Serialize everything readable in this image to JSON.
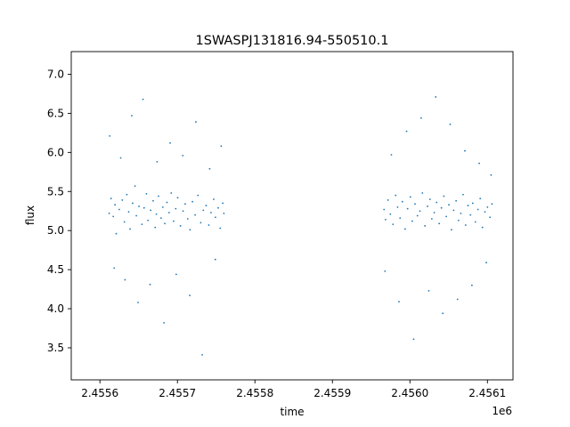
{
  "chart_data": {
    "type": "scatter",
    "title": "1SWASPJ131816.94-550510.1",
    "xlabel": "time",
    "ylabel": "flux",
    "x_offset_label": "1e6",
    "xlim": [
      2455563,
      2456133
    ],
    "ylim": [
      3.09,
      7.29
    ],
    "x_ticks": [
      2455600,
      2455700,
      2455800,
      2455900,
      2456000,
      2456100
    ],
    "x_tick_labels": [
      "2.4556",
      "2.4557",
      "2.4558",
      "2.4559",
      "2.4560",
      "2.4561"
    ],
    "y_ticks": [
      3.5,
      4.0,
      4.5,
      5.0,
      5.5,
      6.0,
      6.5,
      7.0
    ],
    "y_tick_labels": [
      "3.5",
      "4.0",
      "4.5",
      "5.0",
      "5.5",
      "6.0",
      "6.5",
      "7.0"
    ],
    "grid": false,
    "legend": "none",
    "marker_color": "#1f77b4",
    "series": [
      {
        "x": [
          2455612.0,
          2455614.4,
          2455617.2,
          2455619.5,
          2455621.0,
          2455625.0,
          2455628.8,
          2455631.6,
          2455634.7,
          2455637.1,
          2455638.9,
          2455642.2,
          2455645.3,
          2455647.0,
          2455650.4,
          2455654.2,
          2455657.0,
          2455660.0,
          2455662.1,
          2455665.4,
          2455668.7,
          2455671.3,
          2455672.8,
          2455675.6,
          2455678.9,
          2455681.2,
          2455683.7,
          2455686.5,
          2455689.2,
          2455692.0,
          2455695.1,
          2455697.8,
          2455700.3,
          2455703.9,
          2455707.3,
          2455710.0,
          2455713.3,
          2455716.2,
          2455719.4,
          2455722.9,
          2455726.5,
          2455730.1,
          2455733.4,
          2455737.0,
          2455740.5,
          2455743.4,
          2455746.8,
          2455749.1,
          2455752.6,
          2455755.2,
          2455758.5,
          2455759.9,
          2455612.7,
          2455618.4,
          2455626.8,
          2455632.4,
          2455641.1,
          2455649.2,
          2455655.6,
          2455664.7,
          2455673.8,
          2455682.6,
          2455690.6,
          2455698.5,
          2455706.9,
          2455715.9,
          2455723.8,
          2455732.0,
          2455741.6,
          2455748.9,
          2455756.5,
          2455966.6,
          2455968.5,
          2455971.8,
          2455974.8,
          2455978.1,
          2455981.6,
          2455984.1,
          2455987.3,
          2455990.3,
          2455993.8,
          2455997.0,
          2456000.6,
          2456003.0,
          2456006.6,
          2456009.7,
          2456012.9,
          2456016.1,
          2456019.4,
          2456022.7,
          2456025.9,
          2456028.3,
          2456031.4,
          2456034.4,
          2456037.8,
          2456040.7,
          2456043.8,
          2456046.9,
          2456050.3,
          2456053.6,
          2456056.4,
          2456059.6,
          2456062.7,
          2456065.7,
          2456068.6,
          2456071.9,
          2456075.0,
          2456078.1,
          2456081.1,
          2456084.5,
          2456087.8,
          2456090.7,
          2456093.6,
          2456096.8,
          2456100.1,
          2456103.3,
          2456105.9,
          2455967.8,
          2455976.1,
          2455985.9,
          2455995.7,
          2456004.8,
          2456014.5,
          2456024.3,
          2456033.3,
          2456042.4,
          2456051.9,
          2456061.4,
          2456070.9,
          2456080.0,
          2456089.4,
          2456098.6,
          2456104.7
        ],
        "y": [
          5.22,
          5.41,
          5.18,
          5.33,
          4.96,
          5.27,
          5.39,
          5.11,
          5.46,
          5.24,
          5.02,
          5.35,
          5.57,
          5.19,
          5.31,
          5.08,
          5.29,
          5.47,
          5.13,
          5.26,
          5.38,
          5.04,
          5.21,
          5.44,
          5.16,
          5.3,
          5.09,
          5.36,
          5.23,
          5.48,
          5.12,
          5.28,
          5.42,
          5.06,
          5.25,
          5.34,
          5.15,
          5.01,
          5.37,
          5.2,
          5.45,
          5.1,
          5.26,
          5.32,
          5.07,
          5.23,
          5.4,
          5.17,
          5.29,
          5.03,
          5.35,
          5.22,
          6.21,
          4.52,
          5.93,
          4.37,
          6.47,
          4.08,
          6.68,
          4.31,
          5.88,
          3.82,
          6.12,
          4.44,
          5.96,
          4.17,
          6.39,
          3.41,
          5.79,
          4.63,
          6.08,
          5.27,
          5.14,
          5.39,
          5.21,
          5.08,
          5.45,
          5.3,
          5.16,
          5.37,
          5.02,
          5.28,
          5.43,
          5.12,
          5.34,
          5.19,
          5.25,
          5.48,
          5.06,
          5.31,
          5.4,
          5.15,
          5.23,
          5.36,
          5.09,
          5.29,
          5.44,
          5.18,
          5.33,
          5.01,
          5.26,
          5.38,
          5.13,
          5.22,
          5.46,
          5.07,
          5.32,
          5.2,
          5.35,
          5.11,
          5.27,
          5.41,
          5.04,
          5.24,
          5.3,
          5.17,
          5.34,
          4.48,
          5.97,
          4.09,
          6.27,
          3.61,
          6.44,
          4.23,
          6.71,
          3.94,
          6.36,
          4.12,
          6.02,
          4.3,
          5.86,
          4.59,
          5.71
        ]
      }
    ]
  }
}
